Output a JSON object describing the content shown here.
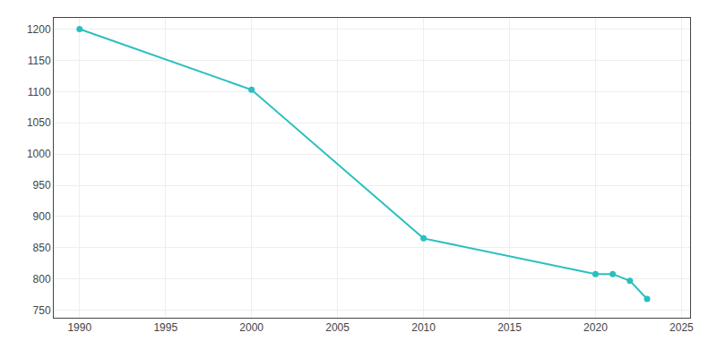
{
  "chart_data": {
    "type": "line",
    "x": [
      1990,
      2000,
      2010,
      2020,
      2021,
      2022,
      2023
    ],
    "values": [
      1200,
      1103,
      865,
      808,
      808,
      797,
      768
    ],
    "color": "#2abfbf",
    "marker": "circle",
    "xlim": [
      1988.5,
      2025.5
    ],
    "ylim": [
      738,
      1218
    ],
    "xticks": [
      1990,
      1995,
      2000,
      2005,
      2010,
      2015,
      2020,
      2025
    ],
    "yticks": [
      750,
      800,
      850,
      900,
      950,
      1000,
      1050,
      1100,
      1150,
      1200
    ],
    "grid": true
  }
}
